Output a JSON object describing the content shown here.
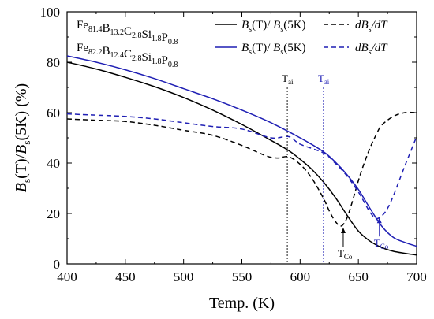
{
  "chart_data": {
    "type": "line",
    "xlabel": "Temp. (K)",
    "ylabel": {
      "base": "B",
      "sub": "s",
      "mid": "(T)/",
      "base2": "B",
      "sub2": "s",
      "tail": "(5K) (%)"
    },
    "xlim": [
      400,
      700
    ],
    "ylim": [
      0,
      100
    ],
    "xticks": [
      "400",
      "450",
      "500",
      "550",
      "600",
      "650",
      "700"
    ],
    "yticks": [
      "0",
      "20",
      "40",
      "60",
      "80",
      "100"
    ],
    "legend": {
      "placement": "top",
      "alloys": [
        {
          "name": "Fe81.4B13.2C2.8Si1.8P0.8",
          "parts": [
            [
              "Fe",
              "81.4"
            ],
            [
              "B",
              "13.2"
            ],
            [
              "C",
              "2.8"
            ],
            [
              "Si",
              "1.8"
            ],
            [
              "P",
              "0.8"
            ]
          ],
          "color": "#000000"
        },
        {
          "name": "Fe82.2B12.4C2.8Si1.8P0.8",
          "parts": [
            [
              "Fe",
              "82.2"
            ],
            [
              "B",
              "12.4"
            ],
            [
              "C",
              "2.8"
            ],
            [
              "Si",
              "1.8"
            ],
            [
              "P",
              "0.8"
            ]
          ],
          "color": "#1f1fb4"
        }
      ],
      "solid_label": {
        "a": "B",
        "as": "s",
        "b": "(T)/ ",
        "c": "B",
        "cs": "s",
        "d": "(5K)"
      },
      "dashed_label": {
        "a": "dB",
        "as": "s",
        "b": "/dT"
      }
    },
    "series": [
      {
        "alloy": 0,
        "kind": "solid",
        "color": "#000000",
        "x": [
          400,
          425,
          450,
          475,
          500,
          525,
          550,
          575,
          590,
          600,
          610,
          620,
          630,
          640,
          650,
          660,
          670,
          680,
          690,
          700
        ],
        "y": [
          80,
          77.3,
          74,
          70.3,
          66,
          61,
          55.3,
          49,
          45,
          41.5,
          37.5,
          32.5,
          26.5,
          19.5,
          13,
          9,
          6.5,
          5,
          4.2,
          3.5
        ]
      },
      {
        "alloy": 0,
        "kind": "dashed",
        "color": "#000000",
        "x": [
          400,
          425,
          450,
          475,
          500,
          525,
          550,
          570,
          580,
          590,
          600,
          610,
          620,
          625,
          630,
          635,
          640,
          645,
          650,
          655,
          660,
          665,
          670,
          680,
          690,
          700
        ],
        "y": [
          57.5,
          57,
          56.5,
          55,
          53,
          51,
          47,
          43,
          42,
          42.5,
          39.5,
          34,
          26,
          21,
          17,
          15,
          18,
          25,
          33,
          40,
          46,
          51,
          55,
          58.5,
          60,
          60
        ]
      },
      {
        "alloy": 1,
        "kind": "solid",
        "color": "#1f1fb4",
        "x": [
          400,
          425,
          450,
          475,
          500,
          525,
          550,
          575,
          600,
          620,
          630,
          640,
          650,
          660,
          670,
          680,
          690,
          700
        ],
        "y": [
          82.5,
          80,
          77,
          73.5,
          69.5,
          65.5,
          61,
          56,
          50,
          44.5,
          40.5,
          35.5,
          29.5,
          22,
          15,
          10.5,
          8.5,
          7
        ]
      },
      {
        "alloy": 1,
        "kind": "dashed",
        "color": "#1f1fb4",
        "x": [
          400,
          425,
          450,
          475,
          500,
          525,
          550,
          575,
          590,
          600,
          620,
          630,
          640,
          650,
          655,
          660,
          665,
          670,
          675,
          680,
          690,
          700
        ],
        "y": [
          59.5,
          59,
          58.5,
          57.5,
          56,
          54.5,
          53.5,
          50,
          50.5,
          47.5,
          44,
          40,
          35,
          28.5,
          24.5,
          20.5,
          18,
          19,
          22,
          27,
          39,
          50.5
        ]
      }
    ],
    "annotations": {
      "tai": [
        {
          "x": 589,
          "label": "T",
          "sub": "ai",
          "color": "#000000"
        },
        {
          "x": 620,
          "label": "T",
          "sub": "ai",
          "color": "#1f1fb4"
        }
      ],
      "tco": [
        {
          "x": 637,
          "y": 15,
          "label": "T",
          "sub": "Co",
          "color": "#000000"
        },
        {
          "x": 668,
          "y": 19,
          "label": "T",
          "sub": "Co",
          "color": "#1f1fb4"
        }
      ]
    }
  }
}
